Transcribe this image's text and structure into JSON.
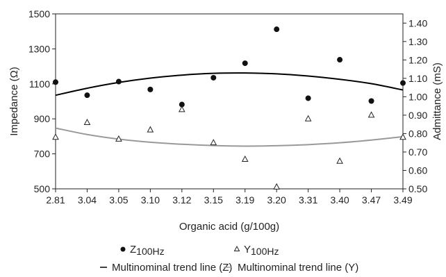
{
  "chart_data": {
    "type": "scatter",
    "categories": [
      "2.81",
      "3.04",
      "3.05",
      "3.10",
      "3.12",
      "3.15",
      "3.19",
      "3.20",
      "3.31",
      "3.40",
      "3.47",
      "3.49"
    ],
    "xlabel": "Organic acid (g/100g)",
    "ylabel": "Impedance (Ω)",
    "y2label": "Admittance (mS)",
    "ylim": [
      500,
      1500
    ],
    "y_ticks": [
      "500",
      "700",
      "900",
      "1100",
      "1300",
      "1500"
    ],
    "y2lim": [
      0.5,
      1.45
    ],
    "y2_ticks": [
      "0.50",
      "0.60",
      "0.70",
      "0.80",
      "0.90",
      "1.00",
      "1.10",
      "1.20",
      "1.30",
      "1.40"
    ],
    "grid": false,
    "series": [
      {
        "name": "Z100Hz",
        "name_main": "Z",
        "name_sub": "100Hz",
        "marker": "filled-circle",
        "axis": "left",
        "color": "#111111",
        "values": [
          1110,
          1035,
          1113,
          1068,
          982,
          1135,
          1218,
          1412,
          1018,
          1238,
          1002,
          1105
        ]
      },
      {
        "name": "Y100Hz",
        "name_main": "Y",
        "name_sub": "100Hz",
        "marker": "open-triangle",
        "axis": "right",
        "color": "#222222",
        "values": [
          0.78,
          0.86,
          0.77,
          0.82,
          0.93,
          0.75,
          0.66,
          0.51,
          0.88,
          0.65,
          0.9,
          0.78
        ]
      }
    ],
    "trend_lines": [
      {
        "name": "Multinominal trend line (Z)",
        "color": "#000000",
        "axis": "left",
        "values": [
          1035,
          1075,
          1108,
          1133,
          1150,
          1160,
          1162,
          1157,
          1145,
          1126,
          1101,
          1065
        ]
      },
      {
        "name": "Multinominal trend line (Y)",
        "color": "#999999",
        "axis": "right",
        "values": [
          0.83,
          0.795,
          0.77,
          0.753,
          0.742,
          0.735,
          0.732,
          0.734,
          0.74,
          0.75,
          0.765,
          0.783
        ]
      }
    ],
    "legend_position": "bottom"
  }
}
